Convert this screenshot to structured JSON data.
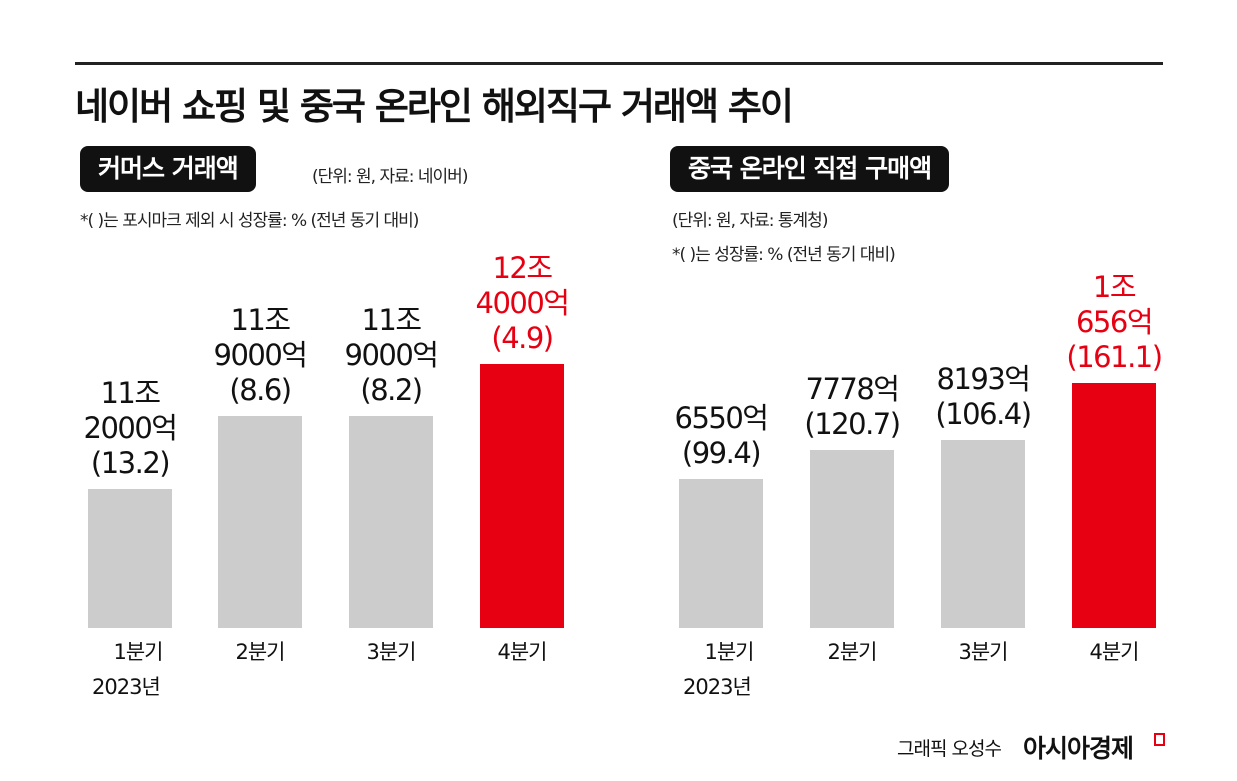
{
  "title": "네이버 쇼핑 및 중국 온라인 해외직구 거래액 추이",
  "colors": {
    "highlight": "#e60012",
    "default": "#cccccc"
  },
  "chart_data": [
    {
      "type": "bar",
      "title": "커머스 거래액",
      "unit_note": "(단위: 원, 자료: 네이버)",
      "footnote": "*( )는 포시마크 제외 시 성장률: % (전년 동기 대비)",
      "categories": [
        "1분기",
        "2분기",
        "3분기",
        "4분기"
      ],
      "year_label": "2023년",
      "values": [
        112000,
        119000,
        119000,
        124000
      ],
      "value_unit": "억",
      "growth": [
        13.2,
        8.6,
        8.2,
        4.9
      ],
      "data_labels": [
        "11조\n2000억\n(13.2)",
        "11조\n9000억\n(8.6)",
        "11조\n9000억\n(8.2)",
        "12조\n4000억\n(4.9)"
      ],
      "highlight_index": 3
    },
    {
      "type": "bar",
      "title": "중국 온라인 직접 구매액",
      "unit_note": "(단위: 원, 자료: 통계청)",
      "footnote": "*( )는 성장률: % (전년 동기 대비)",
      "categories": [
        "1분기",
        "2분기",
        "3분기",
        "4분기"
      ],
      "year_label": "2023년",
      "values": [
        6550,
        7778,
        8193,
        10656
      ],
      "value_unit": "억",
      "growth": [
        99.4,
        120.7,
        106.4,
        161.1
      ],
      "data_labels": [
        "6550억\n(99.4)",
        "7778억\n(120.7)",
        "8193억\n(106.4)",
        "1조\n656억\n(161.1)"
      ],
      "highlight_index": 3
    }
  ],
  "footer": {
    "credit": "그래픽 오성수",
    "brand": "아시아경제"
  }
}
